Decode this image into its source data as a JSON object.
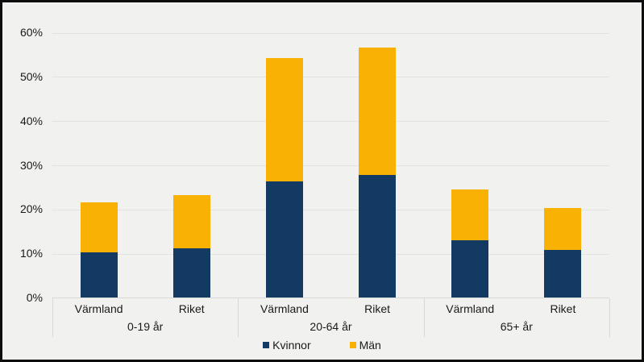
{
  "chart_data": {
    "type": "bar",
    "stacked": true,
    "title": "",
    "xlabel": "",
    "ylabel": "",
    "ylim": [
      0,
      60
    ],
    "grid": true,
    "legend_position": "bottom",
    "yticks": [
      0,
      10,
      20,
      30,
      40,
      50,
      60
    ],
    "ytick_labels": [
      "0%",
      "10%",
      "20%",
      "30%",
      "40%",
      "50%",
      "60%"
    ],
    "group_labels": [
      "0-19 år",
      "20-64 år",
      "65+ år"
    ],
    "categories": [
      "Värmland",
      "Riket",
      "Värmland",
      "Riket",
      "Värmland",
      "Riket"
    ],
    "series": [
      {
        "name": "Kvinnor",
        "color": "#123a63",
        "values": [
          10.3,
          11.2,
          26.2,
          27.7,
          13.0,
          10.7
        ]
      },
      {
        "name": "Män",
        "color": "#f9b104",
        "values": [
          11.2,
          12.0,
          27.9,
          28.8,
          11.4,
          9.6
        ]
      }
    ]
  },
  "legend": {
    "kvinnor_label": "Kvinnor",
    "man_label": "Män"
  },
  "colors": {
    "kvinnor": "#123a63",
    "man": "#f9b104",
    "background": "#f1f1ef",
    "gridline": "#e2e2e0",
    "axis": "#d8d8d6",
    "text": "#1a1a1a",
    "frame_border": "#0d0d0d"
  }
}
